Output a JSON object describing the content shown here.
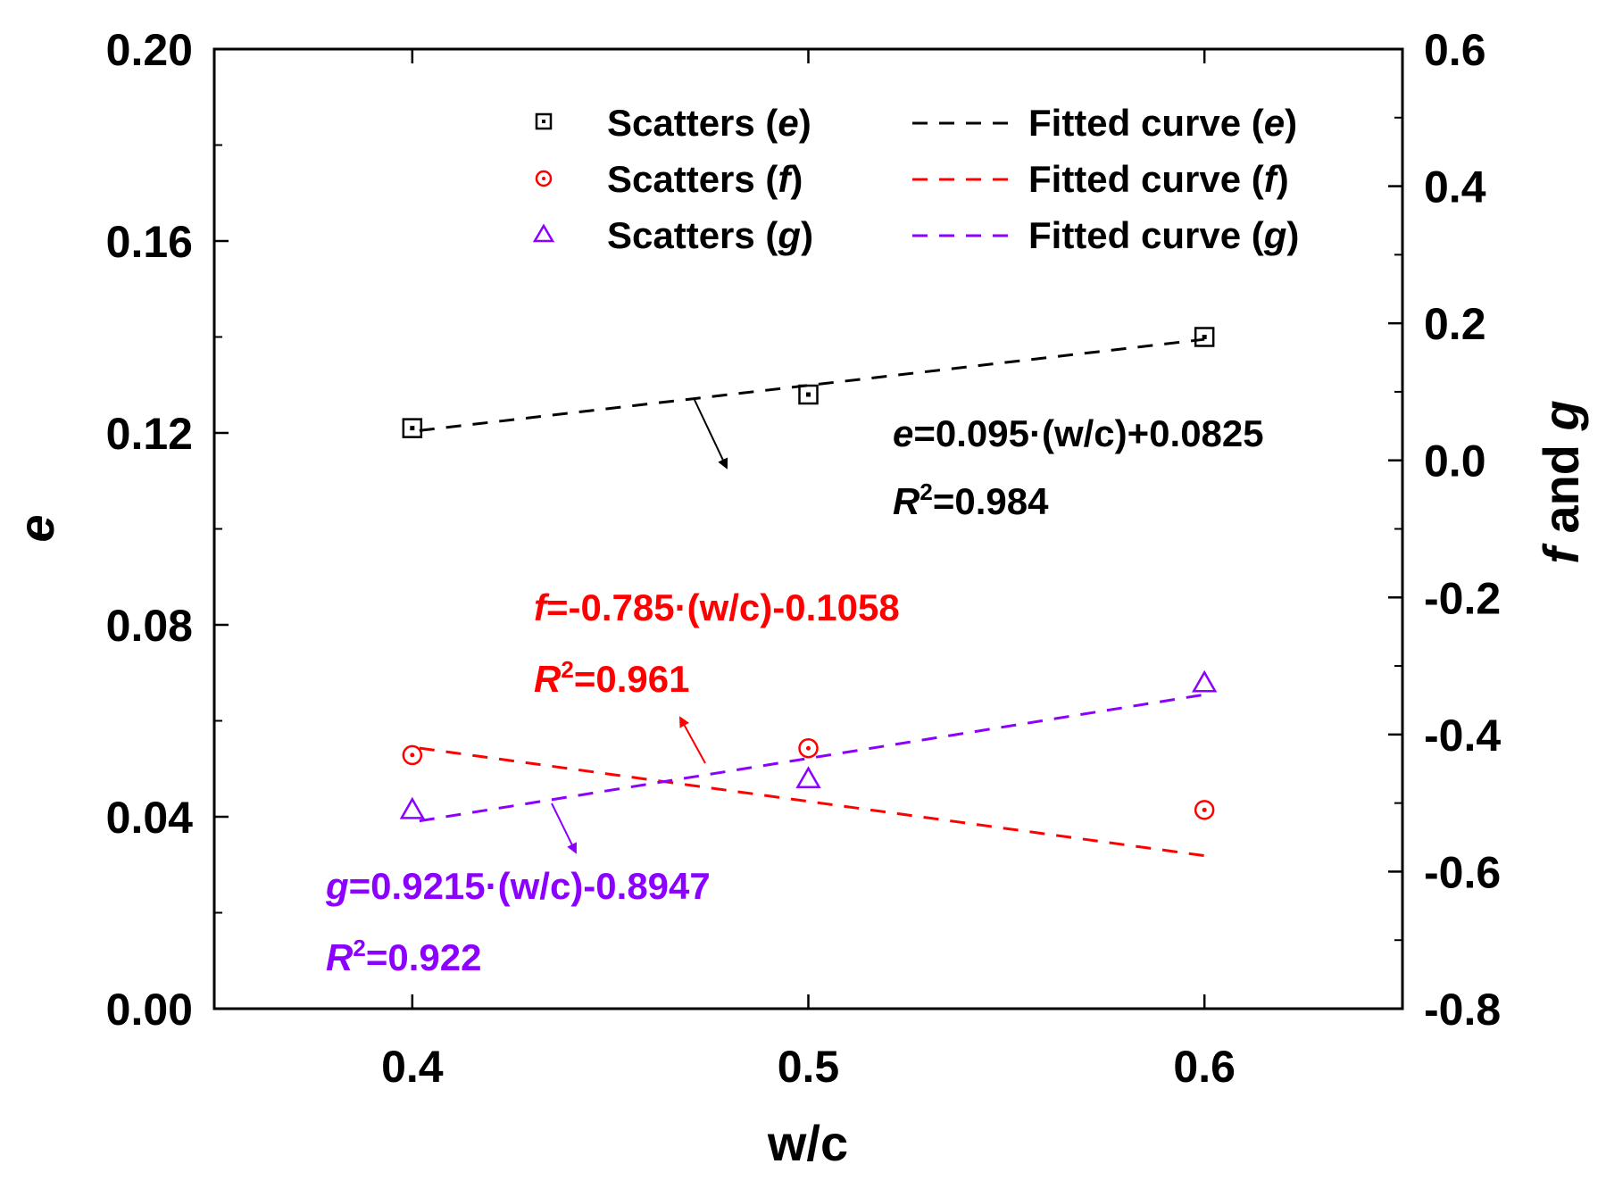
{
  "chart_data": {
    "type": "scatter",
    "xlabel": "w/c",
    "ylabel_left": "e",
    "ylabel_right": "f and g",
    "ylabel_right_parts": {
      "f": "f",
      "and": " and ",
      "g": "g"
    },
    "xlim": [
      0.35,
      0.65
    ],
    "ylim_left": [
      0.0,
      0.2
    ],
    "ylim_right": [
      -0.8,
      0.6
    ],
    "x_ticks": [
      0.4,
      0.5,
      0.6
    ],
    "x_tick_labels": [
      "0.4",
      "0.5",
      "0.6"
    ],
    "y_left_ticks": [
      0.0,
      0.04,
      0.08,
      0.12,
      0.16,
      0.2
    ],
    "y_left_tick_labels": [
      "0.00",
      "0.04",
      "0.08",
      "0.12",
      "0.16",
      "0.20"
    ],
    "y_right_ticks": [
      -0.8,
      -0.6,
      -0.4,
      -0.2,
      0.0,
      0.2,
      0.4,
      0.6
    ],
    "y_right_tick_labels": [
      "-0.8",
      "-0.6",
      "-0.4",
      "-0.2",
      "0.0",
      "0.2",
      "0.4",
      "0.6"
    ],
    "series": [
      {
        "name": "Scatters (e)",
        "var": "e",
        "axis": "left",
        "marker": "square",
        "color": "#000000",
        "x": [
          0.4,
          0.5,
          0.6
        ],
        "y": [
          0.121,
          0.128,
          0.14
        ],
        "fit": {
          "slope": 0.095,
          "intercept": 0.0825,
          "r2": 0.984
        }
      },
      {
        "name": "Scatters (f)",
        "var": "f",
        "axis": "right",
        "marker": "circle",
        "color": "#ff0000",
        "x": [
          0.4,
          0.5,
          0.6
        ],
        "y": [
          -0.43,
          -0.42,
          -0.51
        ],
        "fit": {
          "slope": -0.785,
          "intercept": -0.1058,
          "r2": 0.961
        }
      },
      {
        "name": "Scatters (g)",
        "var": "g",
        "axis": "right",
        "marker": "triangle",
        "color": "#8b00ff",
        "x": [
          0.4,
          0.5,
          0.6
        ],
        "y": [
          -0.51,
          -0.465,
          -0.325
        ],
        "fit": {
          "slope": 0.9215,
          "intercept": -0.8947,
          "r2": 0.922
        }
      }
    ],
    "legend": {
      "placement": "top-center",
      "entries": [
        {
          "scatter_prefix": "Scatters (",
          "fit_prefix": "Fitted curve (",
          "var": "e",
          "suffix": ")"
        },
        {
          "scatter_prefix": "Scatters (",
          "fit_prefix": "Fitted curve (",
          "var": "f",
          "suffix": ")"
        },
        {
          "scatter_prefix": "Scatters (",
          "fit_prefix": "Fitted curve (",
          "var": "g",
          "suffix": ")"
        }
      ]
    },
    "annotations": {
      "e": {
        "var": "e",
        "equation": "=0.095·(w/c)+0.0825",
        "r_symbol": "R",
        "r_sup": "2",
        "r_value": "=0.984"
      },
      "f": {
        "var": "f",
        "equation": "=-0.785·(w/c)-0.1058",
        "r_symbol": "R",
        "r_sup": "2",
        "r_value": "=0.961"
      },
      "g": {
        "var": "g",
        "equation": "=0.9215·(w/c)-0.8947",
        "r_symbol": "R",
        "r_sup": "2",
        "r_value": "=0.922"
      }
    }
  }
}
